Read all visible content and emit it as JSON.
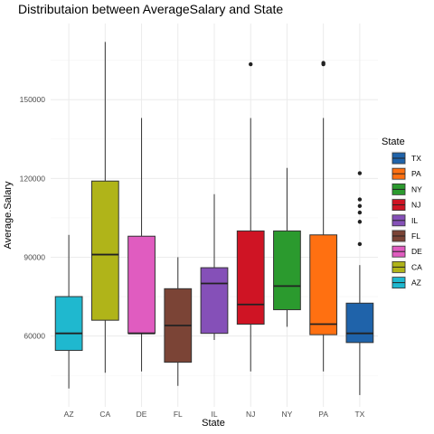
{
  "chart_data": {
    "type": "boxplot",
    "title": "Distributaion between AverageSalary and State",
    "xlabel": "State",
    "ylabel": "Average.Salary",
    "ylim": [
      33000,
      179000
    ],
    "yticks": [
      60000,
      90000,
      120000,
      150000
    ],
    "ytick_labels": [
      "60000",
      "90000",
      "120000",
      "150000"
    ],
    "grid": true,
    "legend": {
      "title": "State",
      "placement": "right",
      "order": [
        "TX",
        "PA",
        "NY",
        "NJ",
        "IL",
        "FL",
        "DE",
        "CA",
        "AZ"
      ]
    },
    "categories": [
      "AZ",
      "CA",
      "DE",
      "FL",
      "IL",
      "NJ",
      "NY",
      "PA",
      "TX"
    ],
    "boxes": [
      {
        "name": "AZ",
        "color": "#1FB8CF",
        "lower_whisker": 40000,
        "q1": 54500,
        "median": 61000,
        "q3": 75000,
        "upper_whisker": 98500,
        "outliers": []
      },
      {
        "name": "CA",
        "color": "#B0B419",
        "lower_whisker": 46000,
        "q1": 66000,
        "median": 91000,
        "q3": 119000,
        "upper_whisker": 172000,
        "outliers": []
      },
      {
        "name": "DE",
        "color": "#E05CC0",
        "lower_whisker": 46500,
        "q1": 61000,
        "median": 61000,
        "q3": 98000,
        "upper_whisker": 143000,
        "outliers": []
      },
      {
        "name": "FL",
        "color": "#7B4436",
        "lower_whisker": 41000,
        "q1": 50000,
        "median": 64000,
        "q3": 78000,
        "upper_whisker": 90000,
        "outliers": []
      },
      {
        "name": "IL",
        "color": "#8550B8",
        "lower_whisker": 58500,
        "q1": 61000,
        "median": 80000,
        "q3": 86000,
        "upper_whisker": 114000,
        "outliers": []
      },
      {
        "name": "NJ",
        "color": "#CF1424",
        "lower_whisker": 46500,
        "q1": 64500,
        "median": 72000,
        "q3": 100000,
        "upper_whisker": 143000,
        "outliers": [
          163500
        ]
      },
      {
        "name": "NY",
        "color": "#2B9A2E",
        "lower_whisker": 63500,
        "q1": 70000,
        "median": 79000,
        "q3": 100000,
        "upper_whisker": 124000,
        "outliers": []
      },
      {
        "name": "PA",
        "color": "#FF7011",
        "lower_whisker": 46500,
        "q1": 60500,
        "median": 64500,
        "q3": 98500,
        "upper_whisker": 143000,
        "outliers": [
          163500,
          164000
        ]
      },
      {
        "name": "TX",
        "color": "#1F63AA",
        "lower_whisker": 37500,
        "q1": 57500,
        "median": 61000,
        "q3": 72500,
        "upper_whisker": 87000,
        "outliers": [
          95000,
          103500,
          107000,
          109500,
          112000,
          122000
        ]
      }
    ]
  }
}
